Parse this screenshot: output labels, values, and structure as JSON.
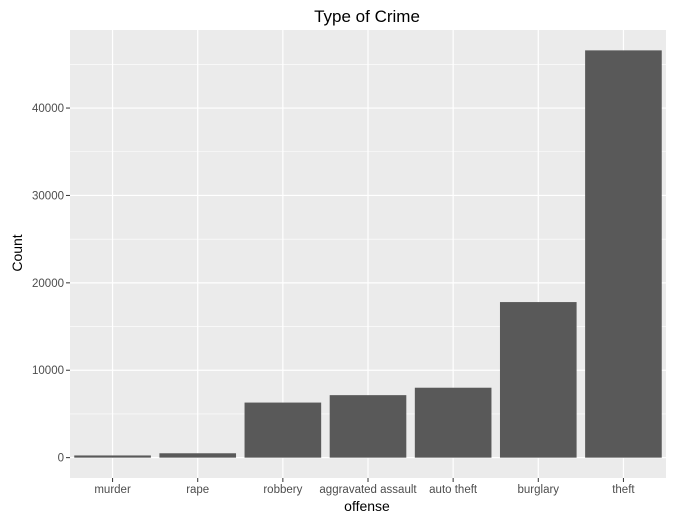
{
  "chart_data": {
    "type": "bar",
    "title": "Type of Crime",
    "xlabel": "offense",
    "ylabel": "Count",
    "categories": [
      "murder",
      "rape",
      "robbery",
      "aggravated assault",
      "auto theft",
      "burglary",
      "theft"
    ],
    "values": [
      250,
      500,
      6300,
      7150,
      8000,
      17800,
      46600
    ],
    "ylim": [
      -2330,
      48930
    ],
    "yticks": [
      0,
      10000,
      20000,
      30000,
      40000
    ],
    "grid": true,
    "colors": {
      "bar": "#595959",
      "panel": "#ebebeb",
      "grid_major": "#ffffff",
      "tick": "#333333"
    }
  }
}
